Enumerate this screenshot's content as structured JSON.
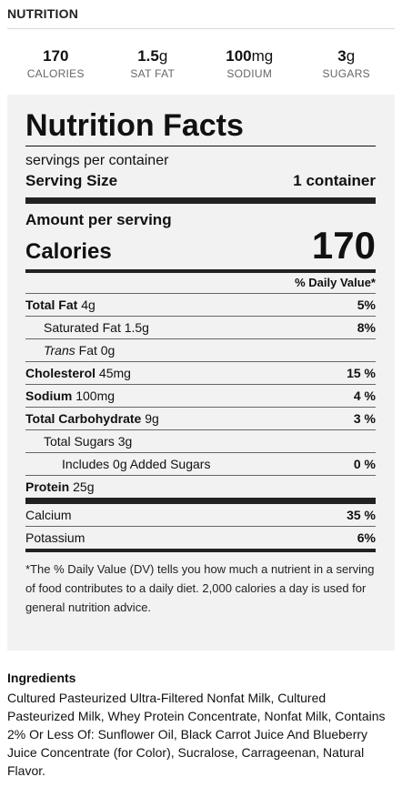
{
  "section": {
    "title": "NUTRITION"
  },
  "summary": [
    {
      "value": "170",
      "unit": "",
      "label": "CALORIES"
    },
    {
      "value": "1.5",
      "unit": "g",
      "label": "SAT FAT"
    },
    {
      "value": "100",
      "unit": "mg",
      "label": "SODIUM"
    },
    {
      "value": "3",
      "unit": "g",
      "label": "SUGARS"
    }
  ],
  "facts": {
    "title": "Nutrition Facts",
    "servings_per_container": "servings per container",
    "serving_size_label": "Serving Size",
    "serving_size_value": "1 container",
    "amount_per_serving": "Amount per serving",
    "calories_label": "Calories",
    "calories_value": "170",
    "dv_header": "% Daily Value*",
    "nutrients": [
      {
        "name": "Total Fat",
        "amount": "4g",
        "dv": "5%"
      },
      {
        "name": "Saturated Fat",
        "amount": "1.5g",
        "dv": "8%"
      },
      {
        "name": "Trans",
        "name2": "Fat",
        "amount": "0g",
        "dv": ""
      },
      {
        "name": "Cholesterol",
        "amount": "45mg",
        "dv": "15 %"
      },
      {
        "name": "Sodium",
        "amount": "100mg",
        "dv": "4 %"
      },
      {
        "name": "Total Carbohydrate",
        "amount": "9g",
        "dv": "3 %"
      },
      {
        "name": "Total Sugars",
        "amount": "3g",
        "dv": ""
      },
      {
        "name": "Includes 0g Added Sugars",
        "amount": "",
        "dv": "0 %"
      },
      {
        "name": "Protein",
        "amount": "25g",
        "dv": ""
      }
    ],
    "minerals": [
      {
        "name": "Calcium",
        "dv": "35 %"
      },
      {
        "name": "Potassium",
        "dv": "6%"
      }
    ],
    "footnote": "*The % Daily Value (DV) tells you how much a nutrient in a serving of food contributes to a daily diet. 2,000 calories a day is used for general nutrition advice."
  },
  "ingredients": {
    "title": "Ingredients",
    "text": "Cultured Pasteurized Ultra-Filtered Nonfat Milk, Cultured Pasteurized Milk, Whey Protein Concentrate, Nonfat Milk, Contains 2% Or Less Of: Sunflower Oil, Black Carrot Juice And Blueberry Juice Concentrate (for Color), Sucralose, Carrageenan, Natural Flavor."
  }
}
